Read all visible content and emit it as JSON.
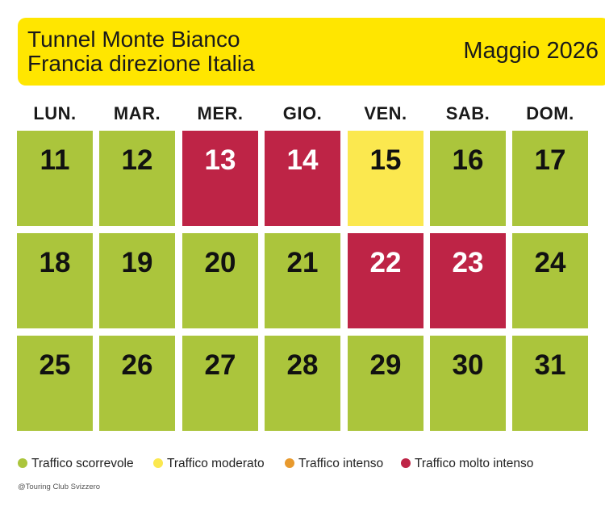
{
  "header": {
    "title_line1": "Tunnel Monte Bianco",
    "title_line2": "Francia direzione Italia",
    "month": "Maggio 2026"
  },
  "weekdays": [
    "LUN.",
    "MAR.",
    "MER.",
    "GIO.",
    "VEN.",
    "SAB.",
    "DOM."
  ],
  "statuses": {
    "scorrevole": "#abc53c",
    "moderato": "#fbe84f",
    "intenso": "#e89a2e",
    "molto_intenso": "#be2446"
  },
  "weeks": [
    [
      {
        "day": "11",
        "status": "scorrevole"
      },
      {
        "day": "12",
        "status": "scorrevole"
      },
      {
        "day": "13",
        "status": "molto_intenso"
      },
      {
        "day": "14",
        "status": "molto_intenso"
      },
      {
        "day": "15",
        "status": "moderato"
      },
      {
        "day": "16",
        "status": "scorrevole"
      },
      {
        "day": "17",
        "status": "scorrevole"
      }
    ],
    [
      {
        "day": "18",
        "status": "scorrevole"
      },
      {
        "day": "19",
        "status": "scorrevole"
      },
      {
        "day": "20",
        "status": "scorrevole"
      },
      {
        "day": "21",
        "status": "scorrevole"
      },
      {
        "day": "22",
        "status": "molto_intenso"
      },
      {
        "day": "23",
        "status": "molto_intenso"
      },
      {
        "day": "24",
        "status": "scorrevole"
      }
    ],
    [
      {
        "day": "25",
        "status": "scorrevole"
      },
      {
        "day": "26",
        "status": "scorrevole"
      },
      {
        "day": "27",
        "status": "scorrevole"
      },
      {
        "day": "28",
        "status": "scorrevole"
      },
      {
        "day": "29",
        "status": "scorrevole"
      },
      {
        "day": "30",
        "status": "scorrevole"
      },
      {
        "day": "31",
        "status": "scorrevole"
      }
    ]
  ],
  "legend": [
    {
      "label": "Traffico scorrevole",
      "color": "#abc53c"
    },
    {
      "label": "Traffico moderato",
      "color": "#fbe84f"
    },
    {
      "label": "Traffico intenso",
      "color": "#e89a2e"
    },
    {
      "label": "Traffico molto intenso",
      "color": "#be2446"
    }
  ],
  "credit": "@Touring Club Svizzero"
}
